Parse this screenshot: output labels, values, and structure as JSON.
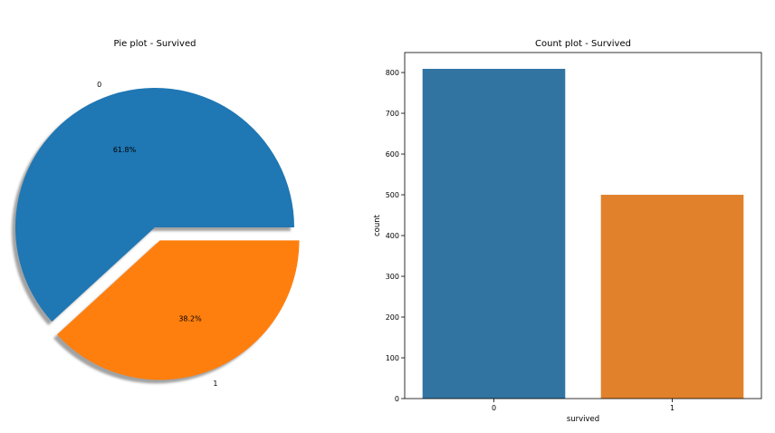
{
  "chart_data": [
    {
      "type": "pie",
      "title": "Pie plot - Survived",
      "labels": [
        "0",
        "1"
      ],
      "values": [
        61.8,
        38.2
      ],
      "value_labels": [
        "61.8%",
        "38.2%"
      ],
      "explode": [
        0,
        0.1
      ],
      "shadow": true,
      "colors": [
        "#1f77b4",
        "#ff7f0e"
      ]
    },
    {
      "type": "bar",
      "title": "Count plot - Survived",
      "categories": [
        "0",
        "1"
      ],
      "values": [
        809,
        500
      ],
      "xlabel": "survived",
      "ylabel": "count",
      "ylim": [
        0,
        849
      ],
      "yticks": [
        0,
        100,
        200,
        300,
        400,
        500,
        600,
        700,
        800
      ],
      "grid": false,
      "colors": [
        "#3274a1",
        "#e1812c"
      ]
    }
  ]
}
